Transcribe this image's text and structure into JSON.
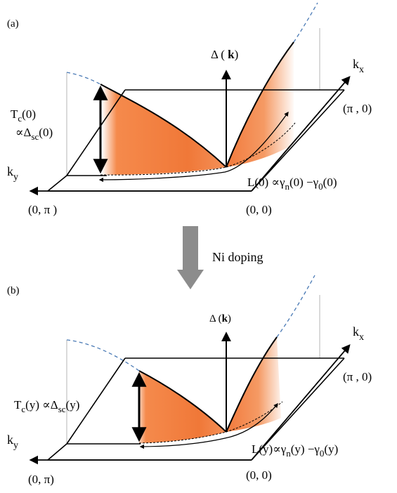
{
  "panel_a": {
    "tag": "(a)",
    "gap_label": "Δ",
    "gap_k": "k",
    "kx_main": "k",
    "kx_sub": "x",
    "ky_main": "k",
    "ky_sub": "y",
    "pi_zero": "(π , 0)",
    "zero_pi": "(0, π )",
    "origin": "(0, 0)",
    "tc_main": "T",
    "tc_sub": "c",
    "tc_arg": "(0)",
    "dsc_prefix": "∝Δ",
    "dsc_sub": "sc",
    "dsc_arg": "(0)",
    "l_text": "L(0) ∝γ",
    "l_sub1": "n",
    "l_mid": "(0) −γ",
    "l_sub2": "0",
    "l_end": "(0)"
  },
  "arrow_label": "Ni doping",
  "panel_b": {
    "tag": "(b)",
    "gap_label": "Δ",
    "gap_k": "k",
    "kx_main": "k",
    "kx_sub": "x",
    "ky_main": "k",
    "ky_sub": "y",
    "pi_zero": "(π , 0)",
    "zero_pi": "(0, π)",
    "origin": "(0, 0)",
    "tc_main": "T",
    "tc_sub": "c",
    "tc_arg": "(y) ∝Δ",
    "dsc_sub": "sc",
    "dsc_arg": "(y)",
    "l_text": "L(y)",
    "l_prop": "∝γ",
    "l_sub1": "n",
    "l_mid": "(y) −γ",
    "l_sub2": "0",
    "l_end": "(y)"
  },
  "colors": {
    "fill_dark": "#f07a3a",
    "fill_light": "#ffffff",
    "dashed": "#4a7ab5",
    "arrow_gray": "#8c8c8c",
    "ref_gray": "#b0b0b0"
  }
}
